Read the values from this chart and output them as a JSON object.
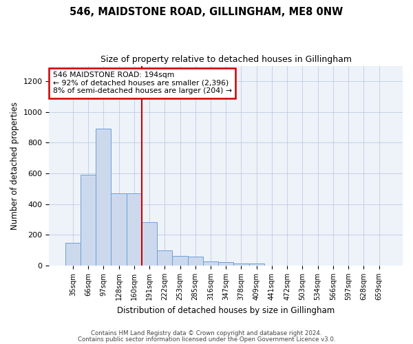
{
  "title": "546, MAIDSTONE ROAD, GILLINGHAM, ME8 0NW",
  "subtitle": "Size of property relative to detached houses in Gillingham",
  "xlabel": "Distribution of detached houses by size in Gillingham",
  "ylabel": "Number of detached properties",
  "bar_color": "#ccd9ed",
  "bar_edge_color": "#6a9fd8",
  "vline_color": "#cc0000",
  "vline_x_idx": 5,
  "annotation_text": "546 MAIDSTONE ROAD: 194sqm\n← 92% of detached houses are smaller (2,396)\n8% of semi-detached houses are larger (204) →",
  "annotation_box_color": "#cc0000",
  "categories": [
    "35sqm",
    "66sqm",
    "97sqm",
    "128sqm",
    "160sqm",
    "191sqm",
    "222sqm",
    "253sqm",
    "285sqm",
    "316sqm",
    "347sqm",
    "378sqm",
    "409sqm",
    "441sqm",
    "472sqm",
    "503sqm",
    "534sqm",
    "566sqm",
    "597sqm",
    "628sqm",
    "659sqm"
  ],
  "values": [
    148,
    590,
    893,
    470,
    468,
    283,
    100,
    62,
    60,
    28,
    22,
    14,
    12,
    0,
    0,
    0,
    0,
    0,
    0,
    0,
    0
  ],
  "ylim": [
    0,
    1300
  ],
  "yticks": [
    0,
    200,
    400,
    600,
    800,
    1000,
    1200
  ],
  "footer1": "Contains HM Land Registry data © Crown copyright and database right 2024.",
  "footer2": "Contains public sector information licensed under the Open Government Licence v3.0.",
  "bg_color": "#ffffff",
  "plot_bg_color": "#eef2f9"
}
